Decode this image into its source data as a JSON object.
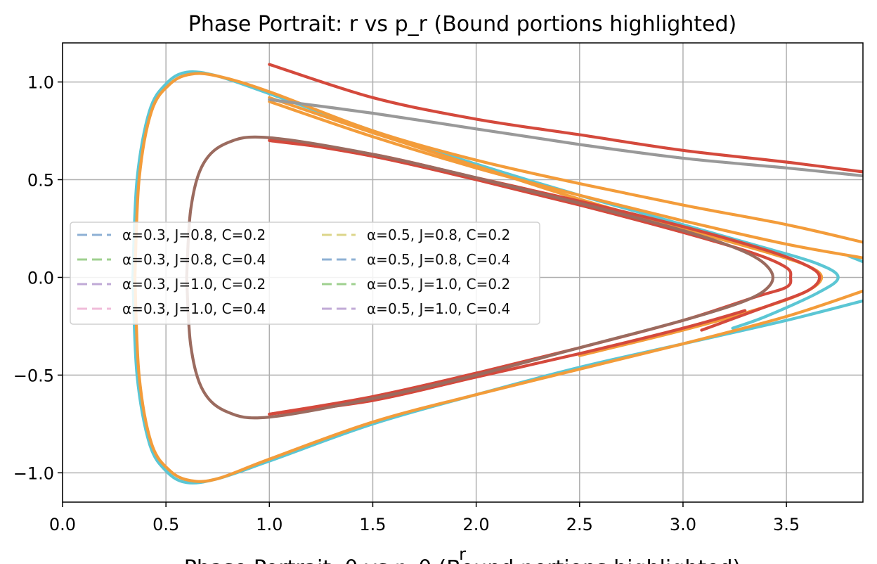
{
  "chart_data": {
    "type": "line",
    "title": "Phase Portrait: r vs p_r (Bound portions highlighted)",
    "xlabel": "r",
    "ylabel": "",
    "xlim": [
      0.0,
      3.87
    ],
    "ylim": [
      -1.15,
      1.2
    ],
    "grid": true,
    "x_ticks": [
      "0.0",
      "0.5",
      "1.0",
      "1.5",
      "2.0",
      "2.5",
      "3.0",
      "3.5"
    ],
    "y_ticks": [
      "−1.0",
      "−0.5",
      "0.0",
      "0.5",
      "1.0"
    ],
    "legend_position": "center-left",
    "legend": [
      {
        "label": "α=0.3, J=0.8, C=0.2",
        "color": "#8eb0d4"
      },
      {
        "label": "α=0.3, J=0.8, C=0.4",
        "color": "#9fd08f"
      },
      {
        "label": "α=0.3, J=1.0, C=0.2",
        "color": "#c0aad6"
      },
      {
        "label": "α=0.3, J=1.0, C=0.4",
        "color": "#f0bcd9"
      },
      {
        "label": "α=0.5, J=0.8, C=0.2",
        "color": "#dcd68a"
      },
      {
        "label": "α=0.5, J=0.8, C=0.4",
        "color": "#8eb0d4"
      },
      {
        "label": "α=0.5, J=1.0, C=0.2",
        "color": "#9fd08f"
      },
      {
        "label": "α=0.5, J=1.0, C=0.4",
        "color": "#c0aad6"
      }
    ],
    "series": [
      {
        "color": "#5bc6d4",
        "points": [
          [
            0.34,
            0.0
          ],
          [
            0.36,
            0.5
          ],
          [
            0.42,
            0.85
          ],
          [
            0.5,
            0.99
          ],
          [
            0.6,
            1.05
          ],
          [
            0.75,
            1.03
          ],
          [
            1.0,
            0.94
          ],
          [
            1.5,
            0.75
          ],
          [
            2.0,
            0.58
          ],
          [
            2.5,
            0.42
          ],
          [
            3.0,
            0.27
          ],
          [
            3.4,
            0.15
          ],
          [
            3.65,
            0.07
          ],
          [
            3.75,
            0.0
          ],
          [
            3.65,
            -0.08
          ],
          [
            3.4,
            -0.2
          ],
          [
            3.24,
            -0.26
          ]
        ]
      },
      {
        "color": "#5bc6d4",
        "points": [
          [
            3.8,
            0.11
          ],
          [
            3.87,
            0.08
          ]
        ]
      },
      {
        "color": "#5bc6d4",
        "points": [
          [
            0.34,
            0.0
          ],
          [
            0.36,
            -0.5
          ],
          [
            0.42,
            -0.85
          ],
          [
            0.5,
            -0.99
          ],
          [
            0.6,
            -1.05
          ],
          [
            0.75,
            -1.03
          ],
          [
            1.0,
            -0.94
          ],
          [
            1.5,
            -0.75
          ],
          [
            2.0,
            -0.6
          ],
          [
            2.5,
            -0.46
          ],
          [
            3.0,
            -0.34
          ],
          [
            3.5,
            -0.22
          ],
          [
            3.87,
            -0.12
          ]
        ]
      },
      {
        "color": "#f39c3a",
        "points": [
          [
            0.35,
            0.0
          ],
          [
            0.37,
            0.5
          ],
          [
            0.43,
            0.85
          ],
          [
            0.52,
            0.99
          ],
          [
            0.62,
            1.04
          ],
          [
            0.75,
            1.03
          ],
          [
            1.0,
            0.95
          ],
          [
            1.5,
            0.75
          ],
          [
            2.0,
            0.6
          ],
          [
            2.5,
            0.48
          ],
          [
            3.0,
            0.37
          ],
          [
            3.5,
            0.27
          ],
          [
            3.87,
            0.18
          ]
        ]
      },
      {
        "color": "#f39c3a",
        "points": [
          [
            1.0,
            0.92
          ],
          [
            1.5,
            0.74
          ],
          [
            2.0,
            0.57
          ],
          [
            2.5,
            0.4
          ],
          [
            3.0,
            0.25
          ],
          [
            3.4,
            0.13
          ],
          [
            3.6,
            0.06
          ],
          [
            3.67,
            0.0
          ],
          [
            3.6,
            -0.07
          ],
          [
            3.4,
            -0.15
          ],
          [
            3.0,
            -0.27
          ],
          [
            2.5,
            -0.4
          ]
        ]
      },
      {
        "color": "#f39c3a",
        "points": [
          [
            1.0,
            0.9
          ],
          [
            1.5,
            0.72
          ],
          [
            2.0,
            0.56
          ],
          [
            2.5,
            0.42
          ],
          [
            3.0,
            0.29
          ],
          [
            3.5,
            0.17
          ],
          [
            3.87,
            0.1
          ]
        ]
      },
      {
        "color": "#f39c3a",
        "points": [
          [
            0.35,
            0.0
          ],
          [
            0.37,
            -0.5
          ],
          [
            0.43,
            -0.85
          ],
          [
            0.52,
            -0.99
          ],
          [
            0.62,
            -1.04
          ],
          [
            0.75,
            -1.03
          ],
          [
            1.0,
            -0.93
          ],
          [
            1.5,
            -0.74
          ],
          [
            2.0,
            -0.6
          ],
          [
            2.5,
            -0.47
          ],
          [
            3.0,
            -0.34
          ],
          [
            3.5,
            -0.2
          ],
          [
            3.87,
            -0.07
          ]
        ]
      },
      {
        "color": "#999999",
        "points": [
          [
            1.0,
            0.91
          ],
          [
            1.5,
            0.84
          ],
          [
            2.0,
            0.76
          ],
          [
            2.5,
            0.68
          ],
          [
            3.0,
            0.61
          ],
          [
            3.5,
            0.56
          ],
          [
            3.87,
            0.52
          ]
        ]
      },
      {
        "color": "#d4493c",
        "points": [
          [
            1.0,
            1.09
          ],
          [
            1.5,
            0.92
          ],
          [
            2.0,
            0.81
          ],
          [
            2.5,
            0.73
          ],
          [
            3.0,
            0.65
          ],
          [
            3.5,
            0.59
          ],
          [
            3.87,
            0.54
          ]
        ]
      },
      {
        "color": "#d4493c",
        "points": [
          [
            1.0,
            0.7
          ],
          [
            1.5,
            0.63
          ],
          [
            2.0,
            0.51
          ],
          [
            2.5,
            0.39
          ],
          [
            3.0,
            0.26
          ],
          [
            3.4,
            0.14
          ],
          [
            3.6,
            0.06
          ],
          [
            3.66,
            0.0
          ],
          [
            3.6,
            -0.07
          ],
          [
            3.4,
            -0.15
          ],
          [
            3.09,
            -0.27
          ]
        ]
      },
      {
        "color": "#d4493c",
        "points": [
          [
            1.0,
            -0.7
          ],
          [
            1.5,
            -0.63
          ],
          [
            2.0,
            -0.51
          ],
          [
            2.5,
            -0.39
          ],
          [
            3.0,
            -0.26
          ],
          [
            3.3,
            -0.17
          ]
        ]
      },
      {
        "color": "#d4493c",
        "points": [
          [
            1.0,
            0.71
          ],
          [
            1.5,
            0.62
          ],
          [
            2.0,
            0.5
          ],
          [
            2.5,
            0.37
          ],
          [
            3.0,
            0.23
          ],
          [
            3.35,
            0.12
          ],
          [
            3.5,
            0.05
          ],
          [
            3.52,
            0.0
          ],
          [
            3.5,
            -0.05
          ],
          [
            3.35,
            -0.1
          ],
          [
            3.0,
            -0.22
          ],
          [
            2.5,
            -0.36
          ],
          [
            2.0,
            -0.49
          ],
          [
            1.5,
            -0.61
          ],
          [
            1.0,
            -0.7
          ]
        ]
      },
      {
        "color": "#9b6b5f",
        "points": [
          [
            0.6,
            0.0
          ],
          [
            0.62,
            0.35
          ],
          [
            0.68,
            0.58
          ],
          [
            0.8,
            0.69
          ],
          [
            1.0,
            0.715
          ],
          [
            1.5,
            0.63
          ],
          [
            2.0,
            0.51
          ],
          [
            2.5,
            0.38
          ],
          [
            3.0,
            0.24
          ],
          [
            3.3,
            0.13
          ],
          [
            3.42,
            0.04
          ],
          [
            3.42,
            -0.04
          ],
          [
            3.3,
            -0.12
          ],
          [
            3.0,
            -0.22
          ],
          [
            2.5,
            -0.36
          ],
          [
            2.0,
            -0.5
          ],
          [
            1.5,
            -0.62
          ],
          [
            1.0,
            -0.715
          ],
          [
            0.8,
            -0.69
          ],
          [
            0.68,
            -0.58
          ],
          [
            0.62,
            -0.35
          ],
          [
            0.6,
            0.0
          ]
        ]
      }
    ]
  },
  "bottom_cut_text": "Phase Portrait: θ vs p_θ (Bound portions highlighted)"
}
